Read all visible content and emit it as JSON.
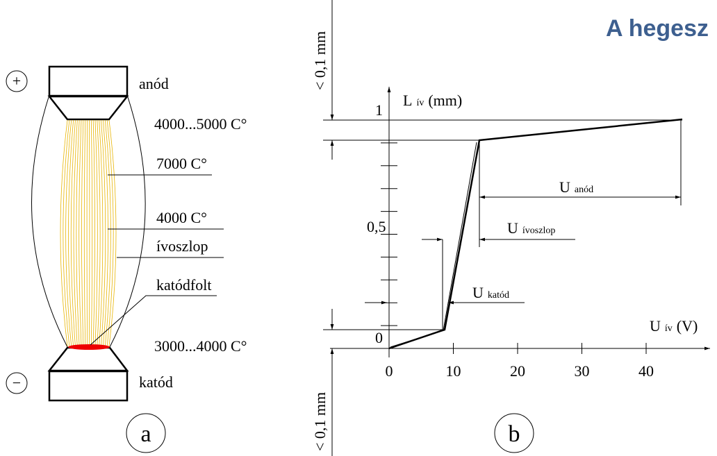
{
  "header": {
    "title": "A hegesz"
  },
  "panel_a": {
    "label": "a",
    "plus": "+",
    "minus": "−",
    "anode": "anód",
    "cathode": "katód",
    "labels": [
      "4000...5000 C°",
      "7000 C°",
      "4000 C°",
      "ívoszlop",
      "katódfolt",
      "3000...4000 C°"
    ]
  },
  "panel_b": {
    "label": "b",
    "y_axis": {
      "symbol": "L",
      "sub": "ív",
      "unit": "(mm)"
    },
    "x_axis": {
      "symbol": "U",
      "sub": "ív",
      "unit": "(V)"
    },
    "y_ticks": [
      "1",
      "0,5",
      "0"
    ],
    "x_ticks": [
      "0",
      "10",
      "20",
      "30",
      "40"
    ],
    "dim_top": "< 0,1 mm",
    "dim_bottom": "< 0,1 mm",
    "u_anode": {
      "symbol": "U",
      "sub": "anód"
    },
    "u_column": {
      "symbol": "U",
      "sub": "ívoszlop"
    },
    "u_cathode": {
      "symbol": "U",
      "sub": "katód"
    }
  }
}
